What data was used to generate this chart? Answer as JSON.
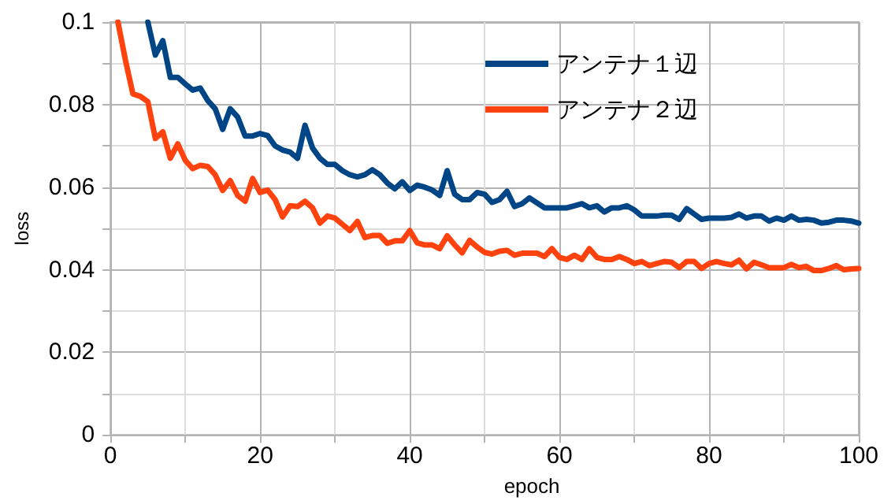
{
  "chart_data": {
    "type": "line",
    "xlabel": "epoch",
    "ylabel": "loss",
    "x": [
      1,
      2,
      3,
      4,
      5,
      6,
      7,
      8,
      9,
      10,
      11,
      12,
      13,
      14,
      15,
      16,
      17,
      18,
      19,
      20,
      21,
      22,
      23,
      24,
      25,
      26,
      27,
      28,
      29,
      30,
      31,
      32,
      33,
      34,
      35,
      36,
      37,
      38,
      39,
      40,
      41,
      42,
      43,
      44,
      45,
      46,
      47,
      48,
      49,
      50,
      51,
      52,
      53,
      54,
      55,
      56,
      57,
      58,
      59,
      60,
      61,
      62,
      63,
      64,
      65,
      66,
      67,
      68,
      69,
      70,
      71,
      72,
      73,
      74,
      75,
      76,
      77,
      78,
      79,
      80,
      81,
      82,
      83,
      84,
      85,
      86,
      87,
      88,
      89,
      90,
      91,
      92,
      93,
      94,
      95,
      96,
      97,
      98,
      99,
      100
    ],
    "series": [
      {
        "name": "アンテナ１辺",
        "color": "#004586",
        "values": [
          null,
          null,
          null,
          null,
          0.1,
          0.092,
          0.0955,
          0.0866,
          0.0866,
          0.085,
          0.0835,
          0.084,
          0.081,
          0.079,
          0.074,
          0.079,
          0.077,
          0.0724,
          0.0724,
          0.073,
          0.0725,
          0.07,
          0.069,
          0.0685,
          0.067,
          0.075,
          0.0695,
          0.067,
          0.0655,
          0.0655,
          0.064,
          0.063,
          0.0625,
          0.063,
          0.0642,
          0.063,
          0.061,
          0.0596,
          0.0613,
          0.0592,
          0.0605,
          0.06,
          0.0593,
          0.058,
          0.064,
          0.0583,
          0.057,
          0.057,
          0.0587,
          0.0583,
          0.0563,
          0.057,
          0.059,
          0.0553,
          0.056,
          0.0574,
          0.0562,
          0.055,
          0.055,
          0.055,
          0.055,
          0.0555,
          0.056,
          0.055,
          0.0555,
          0.054,
          0.055,
          0.055,
          0.0555,
          0.0545,
          0.053,
          0.053,
          0.053,
          0.0532,
          0.0532,
          0.0522,
          0.0548,
          0.0535,
          0.0522,
          0.0525,
          0.0525,
          0.0525,
          0.0527,
          0.0535,
          0.0525,
          0.053,
          0.053,
          0.0518,
          0.0525,
          0.052,
          0.053,
          0.052,
          0.0522,
          0.052,
          0.0513,
          0.0515,
          0.052,
          0.052,
          0.0518,
          0.0513
        ]
      },
      {
        "name": "アンテナ２辺",
        "color": "#ff420e",
        "values": [
          0.1,
          0.0908,
          0.0826,
          0.082,
          0.0807,
          0.0718,
          0.0734,
          0.067,
          0.0705,
          0.0665,
          0.0645,
          0.0653,
          0.065,
          0.063,
          0.0592,
          0.0616,
          0.058,
          0.0566,
          0.0621,
          0.0587,
          0.0593,
          0.057,
          0.0528,
          0.0555,
          0.0553,
          0.0566,
          0.055,
          0.0513,
          0.053,
          0.0525,
          0.051,
          0.0495,
          0.0517,
          0.0478,
          0.0483,
          0.0483,
          0.0464,
          0.047,
          0.047,
          0.0495,
          0.0465,
          0.046,
          0.046,
          0.0451,
          0.0482,
          0.046,
          0.0441,
          0.0471,
          0.0455,
          0.0442,
          0.0438,
          0.0445,
          0.0447,
          0.0435,
          0.044,
          0.044,
          0.044,
          0.0432,
          0.0451,
          0.043,
          0.0425,
          0.0435,
          0.0425,
          0.0451,
          0.043,
          0.0425,
          0.0425,
          0.0432,
          0.0425,
          0.0415,
          0.042,
          0.041,
          0.0415,
          0.042,
          0.0418,
          0.0405,
          0.042,
          0.042,
          0.0403,
          0.0415,
          0.042,
          0.0415,
          0.0412,
          0.0423,
          0.0402,
          0.0418,
          0.0412,
          0.0405,
          0.0405,
          0.0405,
          0.0413,
          0.0405,
          0.0408,
          0.0398,
          0.0398,
          0.0403,
          0.041,
          0.04,
          0.0402,
          0.0403
        ]
      }
    ],
    "xlim": [
      0,
      100
    ],
    "xticks": [
      0,
      {
        "value": 10,
        "label": null
      },
      20,
      {
        "value": 30,
        "label": null
      },
      40,
      {
        "value": 50,
        "label": null
      },
      60,
      {
        "value": 70,
        "label": null
      },
      80,
      {
        "value": 90,
        "label": null
      },
      100
    ],
    "ylim": [
      0,
      0.1
    ],
    "yticks": [
      0,
      {
        "value": 0.01,
        "label": null
      },
      0.02,
      {
        "value": 0.03,
        "label": null
      },
      0.04,
      {
        "value": 0.05,
        "label": null
      },
      0.06,
      {
        "value": 0.07,
        "label": null
      },
      0.08,
      {
        "value": 0.09,
        "label": null
      },
      0.1
    ],
    "grid": true,
    "legend": "top right",
    "marker": "none",
    "line_style": "solid"
  }
}
